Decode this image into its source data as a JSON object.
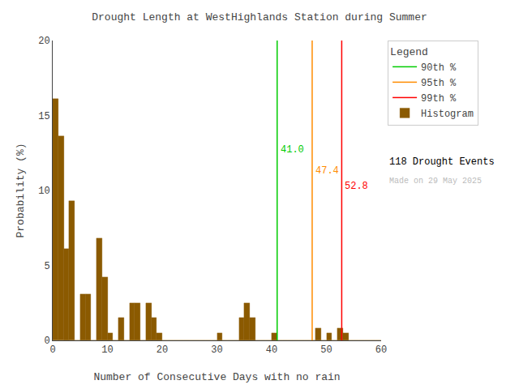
{
  "chart_data": {
    "type": "histogram",
    "title": "Drought Length at WestHighlands Station during Summer",
    "xlabel": "Number of Consecutive Days with no rain",
    "ylabel": "Probability (%)",
    "xlim": [
      0,
      60
    ],
    "ylim": [
      0,
      20
    ],
    "xticks": [
      0,
      10,
      20,
      30,
      40,
      50,
      60
    ],
    "yticks": [
      0,
      5,
      10,
      15,
      20
    ],
    "grid": false,
    "bins": [
      0,
      1,
      2,
      3,
      4,
      5,
      6,
      7,
      8,
      9,
      10,
      11,
      12,
      13,
      14,
      15,
      16,
      17,
      18,
      19,
      20,
      21,
      22,
      23,
      24,
      25,
      26,
      27,
      28,
      29,
      30,
      31,
      32,
      33,
      34,
      35,
      36,
      37,
      38,
      39,
      40,
      41,
      42,
      43,
      44,
      45,
      46,
      47,
      48,
      49,
      50,
      51,
      52,
      53,
      54,
      55,
      56,
      57,
      58,
      59,
      60
    ],
    "series": [
      {
        "name": "Histogram",
        "color": "#8B5A00",
        "values": [
          16.1,
          13.6,
          6.1,
          9.3,
          0.0,
          3.1,
          3.1,
          0.0,
          6.8,
          4.2,
          0.5,
          0.0,
          1.5,
          0.0,
          2.5,
          2.5,
          0.0,
          2.5,
          1.5,
          0.5,
          0.0,
          0.0,
          0.0,
          0.0,
          0.0,
          0.0,
          0.0,
          0.0,
          0.0,
          0.0,
          0.5,
          0.0,
          0.0,
          0.0,
          1.5,
          2.5,
          1.5,
          0.0,
          0.0,
          0.0,
          0.5,
          0.0,
          0.0,
          0.0,
          0.0,
          0.0,
          0.0,
          0.0,
          0.8,
          0.0,
          0.5,
          0.0,
          0.8,
          0.5,
          0.0,
          0.0,
          0.0,
          0.0,
          0.0,
          0.0
        ]
      }
    ],
    "lines": [
      {
        "name": "90th %",
        "x": 41.0,
        "color": "#00CC00"
      },
      {
        "name": "95th %",
        "x": 47.4,
        "color": "#FF8C00"
      },
      {
        "name": "99th %",
        "x": 52.8,
        "color": "#FF0000"
      }
    ],
    "annotations": [
      {
        "text": "41.0",
        "x": 41.3,
        "y": 12.2,
        "color": "#00CC00"
      },
      {
        "text": "47.4",
        "x": 47.7,
        "y": 10.8,
        "color": "#FF8C00"
      },
      {
        "text": "52.8",
        "x": 53.1,
        "y": 9.8,
        "color": "#FF0000"
      }
    ],
    "legend": "right",
    "legend_title": "Legend",
    "texts": [
      {
        "text": "118 Drought Events",
        "color": "#000000"
      },
      {
        "text": "Made on 29 May 2025",
        "color": "#BBBBBB"
      }
    ]
  }
}
